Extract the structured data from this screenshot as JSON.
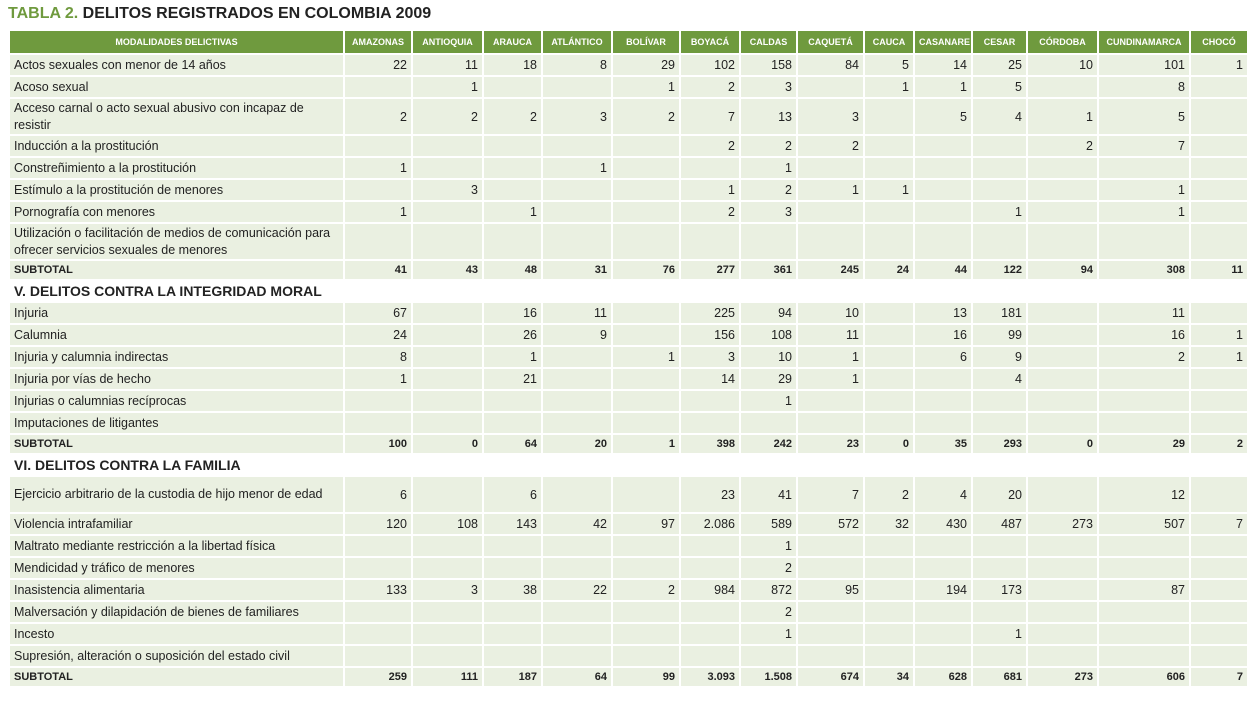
{
  "title": {
    "number": "TABLA 2.",
    "text": "DELITOS REGISTRADOS EN COLOMBIA 2009"
  },
  "columns": [
    "MODALIDADES DELICTIVAS",
    "AMAZONAS",
    "ANTIOQUIA",
    "ARAUCA",
    "ATLÁNTICO",
    "BOLÍVAR",
    "BOYACÁ",
    "CALDAS",
    "CAQUETÁ",
    "CAUCA",
    "CASANARE",
    "CESAR",
    "CÓRDOBA",
    "CUNDINAMARCA",
    "CHOCÓ"
  ],
  "rows": [
    {
      "type": "data",
      "label": "Actos sexuales con menor de 14 años",
      "values": [
        "22",
        "11",
        "18",
        "8",
        "29",
        "102",
        "158",
        "84",
        "5",
        "14",
        "25",
        "10",
        "101",
        "1"
      ]
    },
    {
      "type": "data",
      "label": "Acoso sexual",
      "values": [
        "",
        "1",
        "",
        "",
        "1",
        "2",
        "3",
        "",
        "1",
        "1",
        "5",
        "",
        "8",
        ""
      ]
    },
    {
      "type": "data",
      "tall": true,
      "label": "Acceso carnal o acto sexual abusivo con incapaz de resistir",
      "values": [
        "2",
        "2",
        "2",
        "3",
        "2",
        "7",
        "13",
        "3",
        "",
        "5",
        "4",
        "1",
        "5",
        ""
      ]
    },
    {
      "type": "data",
      "label": "Inducción a la prostitución",
      "values": [
        "",
        "",
        "",
        "",
        "",
        "2",
        "2",
        "2",
        "",
        "",
        "",
        "2",
        "7",
        ""
      ]
    },
    {
      "type": "data",
      "label": "Constreñimiento a la prostitución",
      "values": [
        "1",
        "",
        "",
        "1",
        "",
        "",
        "1",
        "",
        "",
        "",
        "",
        "",
        "",
        ""
      ]
    },
    {
      "type": "data",
      "label": "Estímulo a la prostitución de menores",
      "values": [
        "",
        "3",
        "",
        "",
        "",
        "1",
        "2",
        "1",
        "1",
        "",
        "",
        "",
        "1",
        ""
      ]
    },
    {
      "type": "data",
      "label": "Pornografía con menores",
      "values": [
        "1",
        "",
        "1",
        "",
        "",
        "2",
        "3",
        "",
        "",
        "",
        "1",
        "",
        "1",
        ""
      ]
    },
    {
      "type": "data",
      "tall": true,
      "label": "Utilización o facilitación de medios de comunicación para ofrecer servicios sexuales de menores",
      "values": [
        "",
        "",
        "",
        "",
        "",
        "",
        "",
        "",
        "",
        "",
        "",
        "",
        "",
        ""
      ]
    },
    {
      "type": "subtotal",
      "label": "SUBTOTAL",
      "values": [
        "41",
        "43",
        "48",
        "31",
        "76",
        "277",
        "361",
        "245",
        "24",
        "44",
        "122",
        "94",
        "308",
        "11"
      ]
    },
    {
      "type": "section",
      "label": "V. DELITOS CONTRA LA INTEGRIDAD MORAL"
    },
    {
      "type": "data",
      "label": "Injuria",
      "values": [
        "67",
        "",
        "16",
        "11",
        "",
        "225",
        "94",
        "10",
        "",
        "13",
        "181",
        "",
        "11",
        ""
      ]
    },
    {
      "type": "data",
      "label": "Calumnia",
      "values": [
        "24",
        "",
        "26",
        "9",
        "",
        "156",
        "108",
        "11",
        "",
        "16",
        "99",
        "",
        "16",
        "1"
      ]
    },
    {
      "type": "data",
      "label": "Injuria y calumnia indirectas",
      "values": [
        "8",
        "",
        "1",
        "",
        "1",
        "3",
        "10",
        "1",
        "",
        "6",
        "9",
        "",
        "2",
        "1"
      ]
    },
    {
      "type": "data",
      "label": "Injuria por vías de hecho",
      "values": [
        "1",
        "",
        "21",
        "",
        "",
        "14",
        "29",
        "1",
        "",
        "",
        "4",
        "",
        "",
        ""
      ]
    },
    {
      "type": "data",
      "label": "Injurias o calumnias recíprocas",
      "values": [
        "",
        "",
        "",
        "",
        "",
        "",
        "1",
        "",
        "",
        "",
        "",
        "",
        "",
        ""
      ]
    },
    {
      "type": "data",
      "label": "Imputaciones de litigantes",
      "values": [
        "",
        "",
        "",
        "",
        "",
        "",
        "",
        "",
        "",
        "",
        "",
        "",
        "",
        ""
      ]
    },
    {
      "type": "subtotal",
      "label": "SUBTOTAL",
      "values": [
        "100",
        "0",
        "64",
        "20",
        "1",
        "398",
        "242",
        "23",
        "0",
        "35",
        "293",
        "0",
        "29",
        "2"
      ]
    },
    {
      "type": "section",
      "label": "VI. DELITOS CONTRA LA FAMILIA"
    },
    {
      "type": "data",
      "tall": true,
      "label": "Ejercicio arbitrario de la custodia de hijo menor de edad",
      "values": [
        "6",
        "",
        "6",
        "",
        "",
        "23",
        "41",
        "7",
        "2",
        "4",
        "20",
        "",
        "12",
        ""
      ]
    },
    {
      "type": "data",
      "label": "Violencia intrafamiliar",
      "values": [
        "120",
        "108",
        "143",
        "42",
        "97",
        "2.086",
        "589",
        "572",
        "32",
        "430",
        "487",
        "273",
        "507",
        "7"
      ]
    },
    {
      "type": "data",
      "label": "Maltrato mediante restricción a la libertad física",
      "values": [
        "",
        "",
        "",
        "",
        "",
        "",
        "1",
        "",
        "",
        "",
        "",
        "",
        "",
        ""
      ]
    },
    {
      "type": "data",
      "label": "Mendicidad y tráfico de menores",
      "values": [
        "",
        "",
        "",
        "",
        "",
        "",
        "2",
        "",
        "",
        "",
        "",
        "",
        "",
        ""
      ]
    },
    {
      "type": "data",
      "label": "Inasistencia alimentaria",
      "values": [
        "133",
        "3",
        "38",
        "22",
        "2",
        "984",
        "872",
        "95",
        "",
        "194",
        "173",
        "",
        "87",
        ""
      ]
    },
    {
      "type": "data",
      "label": "Malversación y dilapidación de bienes de familiares",
      "values": [
        "",
        "",
        "",
        "",
        "",
        "",
        "2",
        "",
        "",
        "",
        "",
        "",
        "",
        ""
      ]
    },
    {
      "type": "data",
      "label": "Incesto",
      "values": [
        "",
        "",
        "",
        "",
        "",
        "",
        "1",
        "",
        "",
        "",
        "1",
        "",
        "",
        ""
      ]
    },
    {
      "type": "data",
      "label": "Supresión, alteración o suposición del estado civil",
      "values": [
        "",
        "",
        "",
        "",
        "",
        "",
        "",
        "",
        "",
        "",
        "",
        "",
        "",
        ""
      ]
    },
    {
      "type": "subtotal",
      "label": "SUBTOTAL",
      "values": [
        "259",
        "111",
        "187",
        "64",
        "99",
        "3.093",
        "1.508",
        "674",
        "34",
        "628",
        "681",
        "273",
        "606",
        "7"
      ]
    }
  ]
}
